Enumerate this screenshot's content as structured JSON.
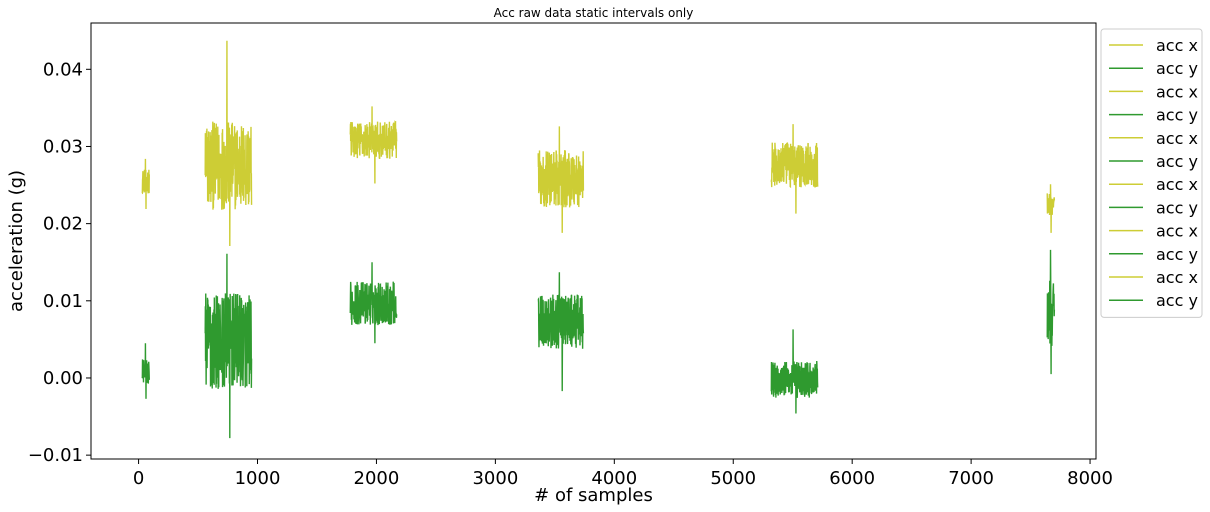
{
  "chart_data": {
    "type": "line",
    "title": "Acc raw data static intervals only",
    "xlabel": "# of samples",
    "ylabel": "acceleration (g)",
    "xlim": [
      -400,
      8050
    ],
    "ylim": [
      -0.0105,
      0.046
    ],
    "xticks": [
      0,
      1000,
      2000,
      3000,
      4000,
      5000,
      6000,
      7000,
      8000
    ],
    "yticks": [
      -0.01,
      0.0,
      0.01,
      0.02,
      0.03,
      0.04
    ],
    "xtick_labels": [
      "0",
      "1000",
      "2000",
      "3000",
      "4000",
      "5000",
      "6000",
      "7000",
      "8000"
    ],
    "ytick_labels": [
      "−0.01",
      "0.00",
      "0.01",
      "0.02",
      "0.03",
      "0.04"
    ],
    "grid": false,
    "legend_position": "outside-right-top",
    "colors": {
      "acc_x": "#cdcd35",
      "acc_y": "#2f9a2f"
    },
    "intervals": [
      {
        "x_start": 30,
        "x_end": 90,
        "acc_x": {
          "mean": 0.0255,
          "min": 0.0219,
          "max": 0.0284
        },
        "acc_y": {
          "mean": 0.0007,
          "min": -0.0027,
          "max": 0.0045
        }
      },
      {
        "x_start": 560,
        "x_end": 950,
        "acc_x": {
          "mean": 0.0275,
          "min": 0.0171,
          "max": 0.0437
        },
        "acc_y": {
          "mean": 0.0048,
          "min": -0.0078,
          "max": 0.0161
        }
      },
      {
        "x_start": 1780,
        "x_end": 2170,
        "acc_x": {
          "mean": 0.0308,
          "min": 0.0252,
          "max": 0.0352
        },
        "acc_y": {
          "mean": 0.0097,
          "min": 0.0045,
          "max": 0.015
        }
      },
      {
        "x_start": 3360,
        "x_end": 3740,
        "acc_x": {
          "mean": 0.0258,
          "min": 0.0188,
          "max": 0.0326
        },
        "acc_y": {
          "mean": 0.0073,
          "min": -0.0017,
          "max": 0.0137
        }
      },
      {
        "x_start": 5320,
        "x_end": 5710,
        "acc_x": {
          "mean": 0.0276,
          "min": 0.0213,
          "max": 0.0329
        },
        "acc_y": {
          "mean": -0.0002,
          "min": -0.0046,
          "max": 0.0063
        }
      },
      {
        "x_start": 7640,
        "x_end": 7700,
        "acc_x": {
          "mean": 0.0225,
          "min": 0.0188,
          "max": 0.0251
        },
        "acc_y": {
          "mean": 0.0085,
          "min": 0.0005,
          "max": 0.0166
        }
      }
    ],
    "legend": [
      {
        "label": "acc x",
        "series": "acc_x"
      },
      {
        "label": "acc y",
        "series": "acc_y"
      },
      {
        "label": "acc x",
        "series": "acc_x"
      },
      {
        "label": "acc y",
        "series": "acc_y"
      },
      {
        "label": "acc x",
        "series": "acc_x"
      },
      {
        "label": "acc y",
        "series": "acc_y"
      },
      {
        "label": "acc x",
        "series": "acc_x"
      },
      {
        "label": "acc y",
        "series": "acc_y"
      },
      {
        "label": "acc x",
        "series": "acc_x"
      },
      {
        "label": "acc y",
        "series": "acc_y"
      },
      {
        "label": "acc x",
        "series": "acc_x"
      },
      {
        "label": "acc y",
        "series": "acc_y"
      }
    ]
  }
}
